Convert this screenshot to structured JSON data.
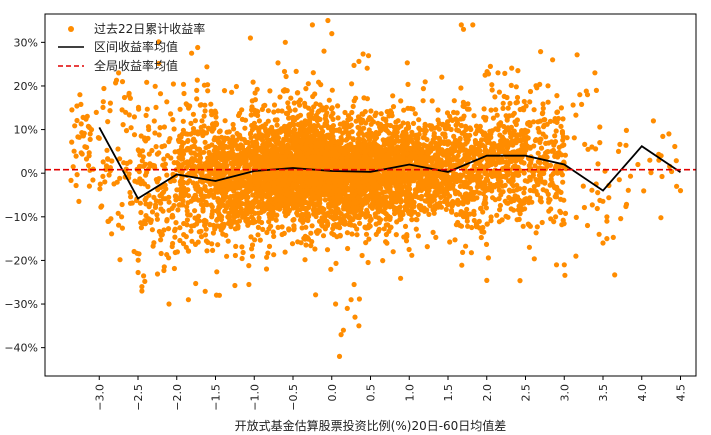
{
  "chart_data": {
    "type": "scatter",
    "xlabel": "开放式基金估算股票投资比例(%)20日-60日均值差",
    "ylabel": "",
    "xlim": [
      -3.7,
      4.7
    ],
    "ylim": [
      -0.465,
      0.365
    ],
    "x_ticks": [
      -3.0,
      -2.5,
      -2.0,
      -1.5,
      -1.0,
      -0.5,
      0.0,
      0.5,
      1.0,
      1.5,
      2.0,
      2.5,
      3.0,
      3.5,
      4.0,
      4.5
    ],
    "x_tick_labels": [
      "−3.0",
      "−2.5",
      "−2.0",
      "−1.5",
      "−1.0",
      "−0.5",
      "0.0",
      "0.5",
      "1.0",
      "1.5",
      "2.0",
      "2.5",
      "3.0",
      "3.5",
      "4.0",
      "4.5"
    ],
    "y_ticks": [
      -0.4,
      -0.3,
      -0.2,
      -0.1,
      0.0,
      0.1,
      0.2,
      0.3
    ],
    "y_tick_labels": [
      "−40%",
      "−30%",
      "−20%",
      "−10%",
      "0%",
      "10%",
      "20%",
      "30%"
    ],
    "legend": {
      "position": "top-left",
      "entries": [
        "过去22日累计收益率",
        "区间收益率均值",
        "全局收益率均值"
      ]
    },
    "series": [
      {
        "name": "过去22日累计收益率",
        "kind": "scatter",
        "color": "#ff8c00",
        "density_profile": [
          {
            "x_min": -3.4,
            "x_max": -3.0,
            "count": 40,
            "y_center": 0.08,
            "y_spread": 0.06
          },
          {
            "x_min": -3.0,
            "x_max": -2.5,
            "count": 70,
            "y_center": 0.02,
            "y_spread": 0.09
          },
          {
            "x_min": -2.5,
            "x_max": -2.0,
            "count": 160,
            "y_center": -0.03,
            "y_spread": 0.09
          },
          {
            "x_min": -2.0,
            "x_max": -1.5,
            "count": 320,
            "y_center": -0.01,
            "y_spread": 0.08
          },
          {
            "x_min": -1.5,
            "x_max": -1.0,
            "count": 520,
            "y_center": -0.01,
            "y_spread": 0.065
          },
          {
            "x_min": -1.0,
            "x_max": -0.5,
            "count": 850,
            "y_center": 0.005,
            "y_spread": 0.055
          },
          {
            "x_min": -0.5,
            "x_max": 0.0,
            "count": 950,
            "y_center": 0.01,
            "y_spread": 0.06
          },
          {
            "x_min": 0.0,
            "x_max": 0.5,
            "count": 850,
            "y_center": 0.0,
            "y_spread": 0.055
          },
          {
            "x_min": 0.5,
            "x_max": 1.0,
            "count": 650,
            "y_center": 0.005,
            "y_spread": 0.055
          },
          {
            "x_min": 1.0,
            "x_max": 1.5,
            "count": 460,
            "y_center": 0.01,
            "y_spread": 0.055
          },
          {
            "x_min": 1.5,
            "x_max": 2.0,
            "count": 360,
            "y_center": 0.01,
            "y_spread": 0.065
          },
          {
            "x_min": 2.0,
            "x_max": 2.5,
            "count": 330,
            "y_center": 0.04,
            "y_spread": 0.07
          },
          {
            "x_min": 2.5,
            "x_max": 3.0,
            "count": 200,
            "y_center": 0.03,
            "y_spread": 0.07
          },
          {
            "x_min": 3.0,
            "x_max": 3.5,
            "count": 30,
            "y_center": 0.02,
            "y_spread": 0.09
          },
          {
            "x_min": 3.5,
            "x_max": 4.0,
            "count": 14,
            "y_center": -0.02,
            "y_spread": 0.08
          },
          {
            "x_min": 4.0,
            "x_max": 4.5,
            "count": 12,
            "y_center": 0.04,
            "y_spread": 0.05
          }
        ],
        "outliers": [
          {
            "x": -3.25,
            "y": 0.18
          },
          {
            "x": -2.75,
            "y": 0.23
          },
          {
            "x": -2.7,
            "y": 0.21
          },
          {
            "x": -2.45,
            "y": -0.26
          },
          {
            "x": -2.45,
            "y": -0.27
          },
          {
            "x": -2.1,
            "y": -0.3
          },
          {
            "x": -1.85,
            "y": -0.29
          },
          {
            "x": -1.45,
            "y": -0.28
          },
          {
            "x": -1.05,
            "y": 0.31
          },
          {
            "x": -0.6,
            "y": 0.3
          },
          {
            "x": -0.25,
            "y": 0.34
          },
          {
            "x": -0.05,
            "y": 0.35
          },
          {
            "x": 0.0,
            "y": 0.32
          },
          {
            "x": -0.1,
            "y": 0.28
          },
          {
            "x": 0.1,
            "y": -0.42
          },
          {
            "x": 0.12,
            "y": -0.37
          },
          {
            "x": 0.15,
            "y": -0.36
          },
          {
            "x": 0.2,
            "y": -0.31
          },
          {
            "x": 0.25,
            "y": -0.29
          },
          {
            "x": 0.3,
            "y": -0.33
          },
          {
            "x": 0.35,
            "y": -0.35
          },
          {
            "x": 0.05,
            "y": -0.3
          },
          {
            "x": 1.7,
            "y": 0.33
          },
          {
            "x": 2.55,
            "y": -0.17
          },
          {
            "x": 2.9,
            "y": -0.21
          },
          {
            "x": 3.0,
            "y": -0.21
          },
          {
            "x": 3.15,
            "y": -0.19
          },
          {
            "x": 2.85,
            "y": 0.26
          },
          {
            "x": 3.45,
            "y": -0.14
          },
          {
            "x": 3.5,
            "y": -0.16
          },
          {
            "x": 3.55,
            "y": -0.1
          },
          {
            "x": 3.55,
            "y": -0.11
          },
          {
            "x": 3.55,
            "y": -0.15
          },
          {
            "x": 3.3,
            "y": -0.12
          },
          {
            "x": 3.95,
            "y": 0.02
          },
          {
            "x": 4.15,
            "y": 0.12
          },
          {
            "x": 4.35,
            "y": 0.09
          },
          {
            "x": 4.45,
            "y": -0.03
          },
          {
            "x": 4.5,
            "y": -0.04
          },
          {
            "x": 3.3,
            "y": 0.18
          },
          {
            "x": 3.2,
            "y": 0.18
          },
          {
            "x": -3.1,
            "y": 0.1
          },
          {
            "x": -3.0,
            "y": 0.08
          },
          {
            "x": 4.25,
            "y": 0.04
          },
          {
            "x": 3.7,
            "y": 0.05
          }
        ]
      },
      {
        "name": "区间收益率均值",
        "kind": "line",
        "color": "#000000",
        "x": [
          -3.0,
          -2.5,
          -2.0,
          -1.5,
          -1.0,
          -0.5,
          0.0,
          0.5,
          1.0,
          1.5,
          2.0,
          2.5,
          3.0,
          3.5,
          4.0,
          4.5
        ],
        "y": [
          0.105,
          -0.058,
          -0.003,
          -0.018,
          0.005,
          0.012,
          0.005,
          0.003,
          0.02,
          0.003,
          0.04,
          0.04,
          0.02,
          -0.04,
          0.062,
          0.002
        ]
      },
      {
        "name": "全局收益率均值",
        "kind": "hline",
        "color": "#e00000",
        "y": 0.008
      }
    ]
  }
}
